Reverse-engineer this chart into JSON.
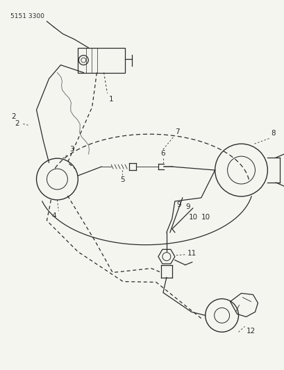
{
  "part_number": "5151 3300",
  "bg": "#f5f5f0",
  "lc": "#2a2a2a",
  "figsize": [
    4.1,
    5.33
  ],
  "dpi": 100,
  "xlim": [
    0,
    410
  ],
  "ylim": [
    0,
    533
  ]
}
